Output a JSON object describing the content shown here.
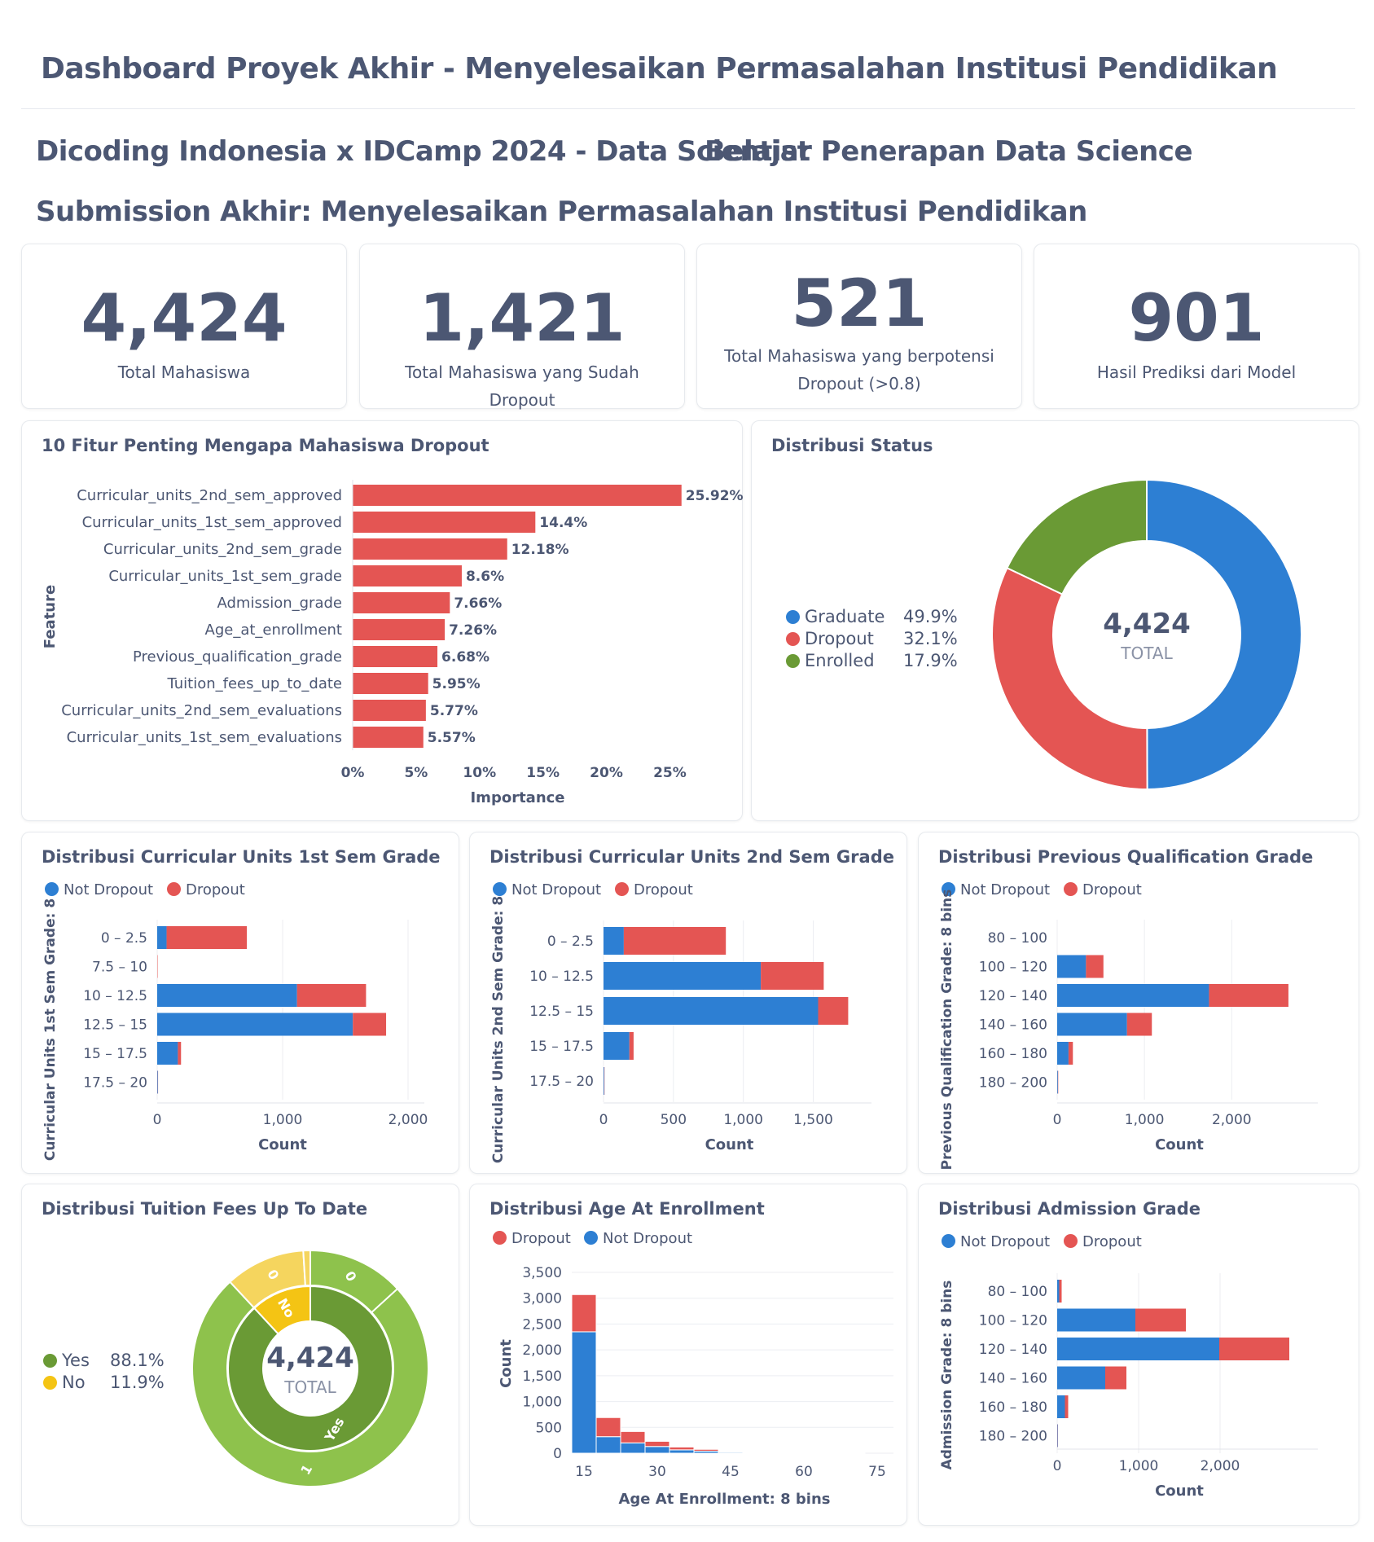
{
  "header": {
    "title": "Dashboard Proyek Akhir - Menyelesaikan Permasalahan Institusi Pendidikan"
  },
  "subheader": {
    "left": "Dicoding Indonesia x IDCamp 2024 - Data Scientist",
    "right": "Belajar Penerapan Data Science",
    "submission": "Submission Akhir: Menyelesaikan Permasalahan Institusi Pendidikan"
  },
  "kpis": [
    {
      "value": "4,424",
      "label": "Total Mahasiswa"
    },
    {
      "value": "1,421",
      "label": "Total Mahasiswa yang Sudah Dropout"
    },
    {
      "value": "521",
      "label": "Total Mahasiswa yang berpotensi Dropout (>0.8)"
    },
    {
      "value": "901",
      "label": "Hasil Prediksi dari Model"
    }
  ],
  "colors": {
    "blue": "#2d7fd3",
    "red": "#e45553",
    "green": "#6a9a35",
    "lightgreen": "#8ec24c",
    "yellow": "#f4c414",
    "lightyellow": "#f5d55e",
    "text": "#4c5773"
  },
  "chart_data": [
    {
      "id": "features",
      "type": "bar",
      "title": "10 Fitur Penting Mengapa Mahasiswa Dropout",
      "orientation": "horizontal",
      "categories": [
        "Curricular_units_2nd_sem_approved",
        "Curricular_units_1st_sem_approved",
        "Curricular_units_2nd_sem_grade",
        "Curricular_units_1st_sem_grade",
        "Admission_grade",
        "Age_at_enrollment",
        "Previous_qualification_grade",
        "Tuition_fees_up_to_date",
        "Curricular_units_2nd_sem_evaluations",
        "Curricular_units_1st_sem_evaluations"
      ],
      "values": [
        25.92,
        14.4,
        12.18,
        8.6,
        7.66,
        7.26,
        6.68,
        5.95,
        5.77,
        5.57
      ],
      "data_labels": [
        "25.92%",
        "14.4%",
        "12.18%",
        "8.6%",
        "7.66%",
        "7.26%",
        "6.68%",
        "5.95%",
        "5.77%",
        "5.57%"
      ],
      "xticks": [
        "0%",
        "5%",
        "10%",
        "15%",
        "20%",
        "25%"
      ],
      "xlim": [
        0,
        26
      ],
      "xlabel": "Importance",
      "ylabel": "Feature"
    },
    {
      "id": "status",
      "type": "pie",
      "title": "Distribusi Status",
      "labels": [
        "Graduate",
        "Dropout",
        "Enrolled"
      ],
      "percent_labels": [
        "49.9%",
        "32.1%",
        "17.9%"
      ],
      "values": [
        49.9,
        32.1,
        17.9
      ],
      "center_value": "4,424",
      "center_label": "TOTAL"
    },
    {
      "id": "grade1",
      "type": "bar",
      "stacked": true,
      "title": "Distribusi Curricular Units 1st Sem Grade",
      "legend": [
        "Not Dropout",
        "Dropout"
      ],
      "categories": [
        "0 – 2.5",
        "7.5 – 10",
        "10 – 12.5",
        "12.5 – 15",
        "15 – 17.5",
        "17.5 – 20"
      ],
      "series": [
        {
          "name": "Not Dropout",
          "values": [
            75,
            0,
            1115,
            1560,
            165,
            5
          ]
        },
        {
          "name": "Dropout",
          "values": [
            640,
            3,
            550,
            265,
            25,
            2
          ]
        }
      ],
      "xticks": [
        "0",
        "1,000",
        "2,000"
      ],
      "xlim": [
        0,
        2000
      ],
      "xlabel": "Count",
      "ylabel": "Curricular Units 1st Sem Grade: 8"
    },
    {
      "id": "grade2",
      "type": "bar",
      "stacked": true,
      "title": "Distribusi Curricular Units 2nd Sem Grade",
      "legend": [
        "Not Dropout",
        "Dropout"
      ],
      "categories": [
        "0 – 2.5",
        "10 – 12.5",
        "12.5 – 15",
        "15 – 17.5",
        "17.5 – 20"
      ],
      "series": [
        {
          "name": "Not Dropout",
          "values": [
            145,
            1125,
            1535,
            185,
            5
          ]
        },
        {
          "name": "Dropout",
          "values": [
            730,
            450,
            215,
            30,
            2
          ]
        }
      ],
      "xticks": [
        "0",
        "500",
        "1,000",
        "1,500"
      ],
      "xlim": [
        0,
        1800
      ],
      "xlabel": "Count",
      "ylabel": "Curricular Units 2nd Sem Grade: 8"
    },
    {
      "id": "prevqual",
      "type": "bar",
      "stacked": true,
      "title": "Distribusi Previous Qualification Grade",
      "legend": [
        "Not Dropout",
        "Dropout"
      ],
      "categories": [
        "80 – 100",
        "100 – 120",
        "120 – 140",
        "140 – 160",
        "160 – 180",
        "180 – 200"
      ],
      "series": [
        {
          "name": "Not Dropout",
          "values": [
            0,
            330,
            1740,
            800,
            130,
            8
          ]
        },
        {
          "name": "Dropout",
          "values": [
            0,
            200,
            910,
            285,
            50,
            4
          ]
        }
      ],
      "xticks": [
        "0",
        "1,000",
        "2,000"
      ],
      "xlim": [
        0,
        2800
      ],
      "xlabel": "Count",
      "ylabel": "Previous Qualification Grade: 8 bins"
    },
    {
      "id": "tuition",
      "type": "pie",
      "title": "Distribusi Tuition Fees Up To Date",
      "labels": [
        "Yes",
        "No"
      ],
      "percent_labels": [
        "88.1%",
        "11.9%"
      ],
      "values": [
        88.1,
        11.9
      ],
      "outer_ring_labels": [
        "0",
        "1",
        "0"
      ],
      "center_value": "4,424",
      "center_label": "TOTAL"
    },
    {
      "id": "age",
      "type": "bar",
      "stacked": true,
      "title": "Distribusi Age At Enrollment",
      "legend": [
        "Dropout",
        "Not Dropout"
      ],
      "x": [
        15,
        20,
        25,
        30,
        35,
        40,
        45,
        50,
        55,
        60,
        65,
        70
      ],
      "series": [
        {
          "name": "Not Dropout",
          "values": [
            2350,
            320,
            200,
            130,
            65,
            40,
            20,
            12,
            8,
            5,
            3,
            2
          ]
        },
        {
          "name": "Dropout",
          "values": [
            720,
            370,
            220,
            100,
            55,
            35,
            15,
            10,
            8,
            4,
            2,
            1
          ]
        }
      ],
      "xticks": [
        "15",
        "30",
        "45",
        "60",
        "75"
      ],
      "yticks": [
        "0",
        "500",
        "1,000",
        "1,500",
        "2,000",
        "2,500",
        "3,000",
        "3,500"
      ],
      "ylim": [
        0,
        3500
      ],
      "xlabel": "Age At Enrollment: 8 bins",
      "ylabel": "Count"
    },
    {
      "id": "admission",
      "type": "bar",
      "stacked": true,
      "title": "Distribusi Admission Grade",
      "legend": [
        "Not Dropout",
        "Dropout"
      ],
      "categories": [
        "80 – 100",
        "100 – 120",
        "120 – 140",
        "140 – 160",
        "160 – 180",
        "180 – 200"
      ],
      "series": [
        {
          "name": "Not Dropout",
          "values": [
            25,
            960,
            1990,
            590,
            95,
            6
          ]
        },
        {
          "name": "Dropout",
          "values": [
            30,
            620,
            860,
            260,
            40,
            3
          ]
        }
      ],
      "xticks": [
        "0",
        "1,000",
        "2,000"
      ],
      "xlim": [
        0,
        3000
      ],
      "xlabel": "Count",
      "ylabel": "Admission Grade: 8 bins"
    }
  ]
}
